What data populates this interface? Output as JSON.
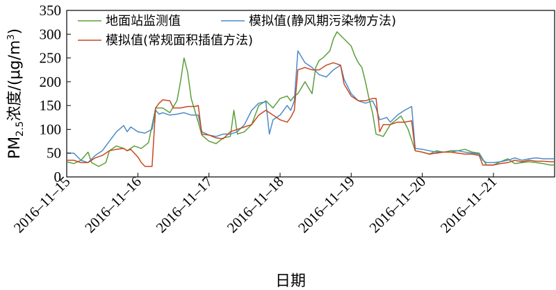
{
  "chart_data": {
    "type": "line",
    "title": "",
    "xlabel": "日期",
    "ylabel": "PM2.5浓度/(μg/m³)",
    "ylabel_parts": {
      "main": "PM",
      "sub": "2.5",
      "rest": "浓度/(μg/m",
      "sup": "3",
      "close": ")"
    },
    "ylim": [
      0,
      350
    ],
    "yticks": [
      "0",
      "50",
      "100",
      "150",
      "200",
      "250",
      "300",
      "350"
    ],
    "xlim": [
      0,
      6.86
    ],
    "xticks": [
      {
        "x": 0,
        "label": "2016–11–15"
      },
      {
        "x": 1,
        "label": "2016–11–16"
      },
      {
        "x": 2,
        "label": "2016–11–17"
      },
      {
        "x": 3,
        "label": "2016–11–18"
      },
      {
        "x": 4,
        "label": "2016–11–19"
      },
      {
        "x": 5,
        "label": "2016–11–20"
      },
      {
        "x": 6,
        "label": "2016–11–21"
      }
    ],
    "legend_position": "top-left",
    "series": [
      {
        "name": "地面站监测值",
        "color": "#5a9e3a",
        "points": [
          [
            0,
            32
          ],
          [
            0.1,
            28
          ],
          [
            0.2,
            35
          ],
          [
            0.3,
            52
          ],
          [
            0.35,
            30
          ],
          [
            0.45,
            22
          ],
          [
            0.55,
            30
          ],
          [
            0.6,
            55
          ],
          [
            0.7,
            65
          ],
          [
            0.8,
            60
          ],
          [
            0.85,
            55
          ],
          [
            0.95,
            65
          ],
          [
            1.05,
            60
          ],
          [
            1.15,
            72
          ],
          [
            1.25,
            145
          ],
          [
            1.35,
            145
          ],
          [
            1.45,
            135
          ],
          [
            1.55,
            160
          ],
          [
            1.6,
            200
          ],
          [
            1.65,
            250
          ],
          [
            1.7,
            220
          ],
          [
            1.75,
            165
          ],
          [
            1.8,
            140
          ],
          [
            1.85,
            115
          ],
          [
            1.9,
            88
          ],
          [
            2.0,
            75
          ],
          [
            2.1,
            70
          ],
          [
            2.2,
            82
          ],
          [
            2.3,
            85
          ],
          [
            2.35,
            140
          ],
          [
            2.4,
            90
          ],
          [
            2.5,
            95
          ],
          [
            2.6,
            110
          ],
          [
            2.7,
            150
          ],
          [
            2.8,
            160
          ],
          [
            2.9,
            145
          ],
          [
            3.0,
            165
          ],
          [
            3.1,
            170
          ],
          [
            3.15,
            160
          ],
          [
            3.2,
            170
          ],
          [
            3.25,
            175
          ],
          [
            3.35,
            200
          ],
          [
            3.45,
            175
          ],
          [
            3.5,
            230
          ],
          [
            3.55,
            245
          ],
          [
            3.6,
            250
          ],
          [
            3.7,
            265
          ],
          [
            3.75,
            290
          ],
          [
            3.8,
            305
          ],
          [
            3.9,
            290
          ],
          [
            4.0,
            275
          ],
          [
            4.05,
            255
          ],
          [
            4.1,
            240
          ],
          [
            4.15,
            230
          ],
          [
            4.2,
            200
          ],
          [
            4.25,
            165
          ],
          [
            4.3,
            135
          ],
          [
            4.35,
            90
          ],
          [
            4.45,
            85
          ],
          [
            4.55,
            110
          ],
          [
            4.7,
            128
          ],
          [
            4.8,
            100
          ],
          [
            4.9,
            55
          ],
          [
            5.0,
            52
          ],
          [
            5.1,
            48
          ],
          [
            5.2,
            55
          ],
          [
            5.3,
            52
          ],
          [
            5.4,
            55
          ],
          [
            5.5,
            55
          ],
          [
            5.6,
            58
          ],
          [
            5.7,
            52
          ],
          [
            5.8,
            50
          ],
          [
            5.9,
            25
          ],
          [
            6.0,
            25
          ],
          [
            6.1,
            32
          ],
          [
            6.2,
            38
          ],
          [
            6.3,
            28
          ],
          [
            6.4,
            30
          ],
          [
            6.5,
            32
          ],
          [
            6.6,
            30
          ],
          [
            6.7,
            28
          ],
          [
            6.8,
            25
          ],
          [
            6.86,
            25
          ]
        ]
      },
      {
        "name": "模拟值(静风期污染物方法)",
        "color": "#4a8ac8",
        "points": [
          [
            0,
            50
          ],
          [
            0.1,
            50
          ],
          [
            0.2,
            35
          ],
          [
            0.3,
            30
          ],
          [
            0.4,
            45
          ],
          [
            0.5,
            55
          ],
          [
            0.6,
            75
          ],
          [
            0.7,
            95
          ],
          [
            0.8,
            108
          ],
          [
            0.85,
            95
          ],
          [
            0.9,
            105
          ],
          [
            1.0,
            95
          ],
          [
            1.1,
            92
          ],
          [
            1.2,
            100
          ],
          [
            1.25,
            140
          ],
          [
            1.3,
            132
          ],
          [
            1.35,
            135
          ],
          [
            1.45,
            130
          ],
          [
            1.55,
            132
          ],
          [
            1.65,
            135
          ],
          [
            1.75,
            130
          ],
          [
            1.85,
            130
          ],
          [
            1.9,
            95
          ],
          [
            2.0,
            88
          ],
          [
            2.1,
            85
          ],
          [
            2.2,
            90
          ],
          [
            2.3,
            90
          ],
          [
            2.4,
            95
          ],
          [
            2.5,
            110
          ],
          [
            2.6,
            140
          ],
          [
            2.7,
            155
          ],
          [
            2.8,
            158
          ],
          [
            2.85,
            90
          ],
          [
            2.9,
            120
          ],
          [
            3.0,
            130
          ],
          [
            3.1,
            150
          ],
          [
            3.15,
            140
          ],
          [
            3.2,
            160
          ],
          [
            3.25,
            265
          ],
          [
            3.35,
            240
          ],
          [
            3.45,
            230
          ],
          [
            3.55,
            215
          ],
          [
            3.65,
            210
          ],
          [
            3.75,
            225
          ],
          [
            3.85,
            235
          ],
          [
            3.9,
            205
          ],
          [
            4.0,
            175
          ],
          [
            4.1,
            160
          ],
          [
            4.2,
            155
          ],
          [
            4.3,
            160
          ],
          [
            4.35,
            145
          ],
          [
            4.4,
            120
          ],
          [
            4.5,
            125
          ],
          [
            4.55,
            115
          ],
          [
            4.65,
            130
          ],
          [
            4.75,
            140
          ],
          [
            4.85,
            148
          ],
          [
            4.9,
            60
          ],
          [
            5.0,
            58
          ],
          [
            5.1,
            55
          ],
          [
            5.2,
            52
          ],
          [
            5.3,
            52
          ],
          [
            5.4,
            52
          ],
          [
            5.5,
            55
          ],
          [
            5.6,
            52
          ],
          [
            5.7,
            50
          ],
          [
            5.8,
            48
          ],
          [
            5.85,
            35
          ],
          [
            5.9,
            30
          ],
          [
            6.0,
            30
          ],
          [
            6.1,
            32
          ],
          [
            6.2,
            35
          ],
          [
            6.3,
            40
          ],
          [
            6.4,
            35
          ],
          [
            6.5,
            38
          ],
          [
            6.6,
            40
          ],
          [
            6.7,
            38
          ],
          [
            6.8,
            38
          ],
          [
            6.86,
            38
          ]
        ]
      },
      {
        "name": "模拟值(常规面积插值方法)",
        "color": "#c8461e",
        "points": [
          [
            0,
            35
          ],
          [
            0.1,
            35
          ],
          [
            0.2,
            30
          ],
          [
            0.3,
            30
          ],
          [
            0.4,
            40
          ],
          [
            0.5,
            45
          ],
          [
            0.6,
            55
          ],
          [
            0.7,
            58
          ],
          [
            0.8,
            60
          ],
          [
            0.85,
            55
          ],
          [
            0.9,
            58
          ],
          [
            1.0,
            42
          ],
          [
            1.05,
            30
          ],
          [
            1.1,
            22
          ],
          [
            1.2,
            22
          ],
          [
            1.25,
            145
          ],
          [
            1.3,
            155
          ],
          [
            1.35,
            162
          ],
          [
            1.45,
            160
          ],
          [
            1.5,
            145
          ],
          [
            1.6,
            145
          ],
          [
            1.7,
            148
          ],
          [
            1.8,
            148
          ],
          [
            1.85,
            150
          ],
          [
            1.9,
            90
          ],
          [
            2.0,
            88
          ],
          [
            2.1,
            82
          ],
          [
            2.2,
            80
          ],
          [
            2.3,
            95
          ],
          [
            2.4,
            100
          ],
          [
            2.5,
            105
          ],
          [
            2.6,
            110
          ],
          [
            2.7,
            130
          ],
          [
            2.8,
            140
          ],
          [
            2.85,
            135
          ],
          [
            2.9,
            130
          ],
          [
            3.0,
            120
          ],
          [
            3.1,
            115
          ],
          [
            3.15,
            125
          ],
          [
            3.2,
            140
          ],
          [
            3.25,
            225
          ],
          [
            3.35,
            230
          ],
          [
            3.45,
            225
          ],
          [
            3.55,
            225
          ],
          [
            3.65,
            235
          ],
          [
            3.75,
            240
          ],
          [
            3.85,
            235
          ],
          [
            3.9,
            195
          ],
          [
            4.0,
            170
          ],
          [
            4.1,
            160
          ],
          [
            4.2,
            160
          ],
          [
            4.3,
            165
          ],
          [
            4.35,
            165
          ],
          [
            4.4,
            95
          ],
          [
            4.45,
            110
          ],
          [
            4.55,
            110
          ],
          [
            4.65,
            115
          ],
          [
            4.75,
            115
          ],
          [
            4.85,
            118
          ],
          [
            4.9,
            55
          ],
          [
            5.0,
            52
          ],
          [
            5.1,
            48
          ],
          [
            5.2,
            50
          ],
          [
            5.3,
            52
          ],
          [
            5.4,
            52
          ],
          [
            5.5,
            50
          ],
          [
            5.6,
            48
          ],
          [
            5.7,
            48
          ],
          [
            5.8,
            45
          ],
          [
            5.85,
            25
          ],
          [
            5.9,
            25
          ],
          [
            6.0,
            25
          ],
          [
            6.1,
            28
          ],
          [
            6.2,
            30
          ],
          [
            6.3,
            35
          ],
          [
            6.4,
            32
          ],
          [
            6.5,
            35
          ],
          [
            6.6,
            33
          ],
          [
            6.7,
            33
          ],
          [
            6.8,
            32
          ],
          [
            6.86,
            32
          ]
        ]
      }
    ]
  }
}
